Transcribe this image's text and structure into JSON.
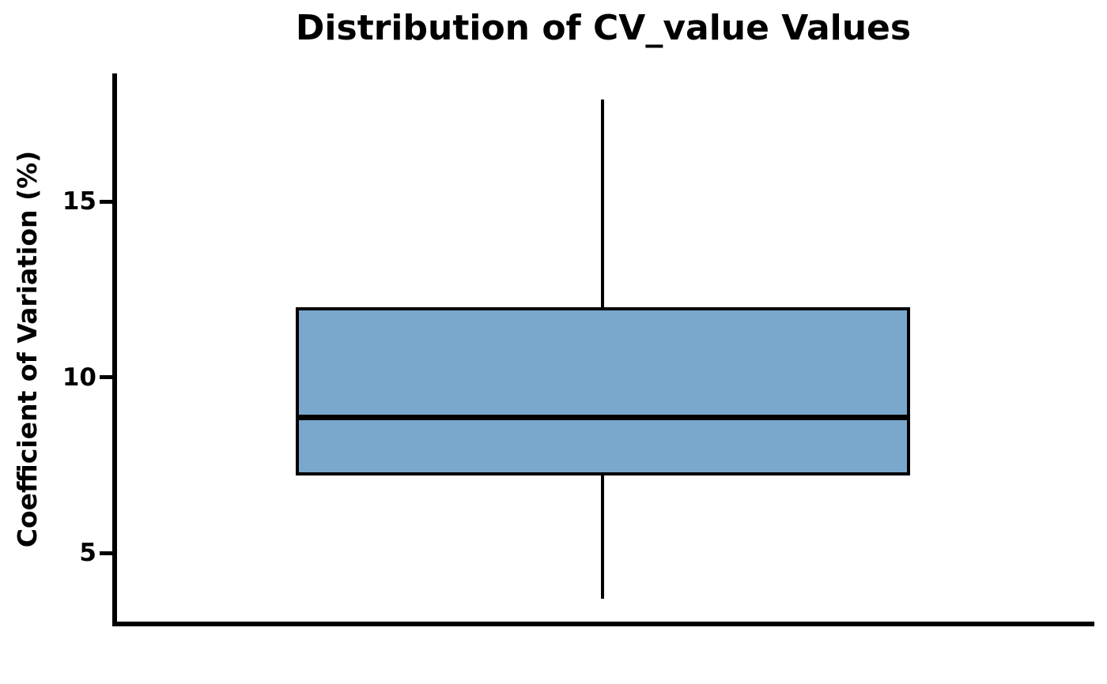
{
  "chart_data": {
    "type": "box",
    "title": "Distribution of CV_value Values",
    "xlabel": "",
    "ylabel": "Coefficient of Variation (%)",
    "y_ticks": [
      5,
      10,
      15
    ],
    "ylim": [
      3.0,
      18.65
    ],
    "grid": false,
    "legend": null,
    "box_fill_color": "#7AA7CC",
    "line_color": "#000000",
    "series": [
      {
        "name": "CV_value",
        "whisker_low": 3.7,
        "q1": 7.2,
        "median": 8.85,
        "q3": 12.0,
        "whisker_high": 17.9,
        "outliers": []
      }
    ]
  }
}
